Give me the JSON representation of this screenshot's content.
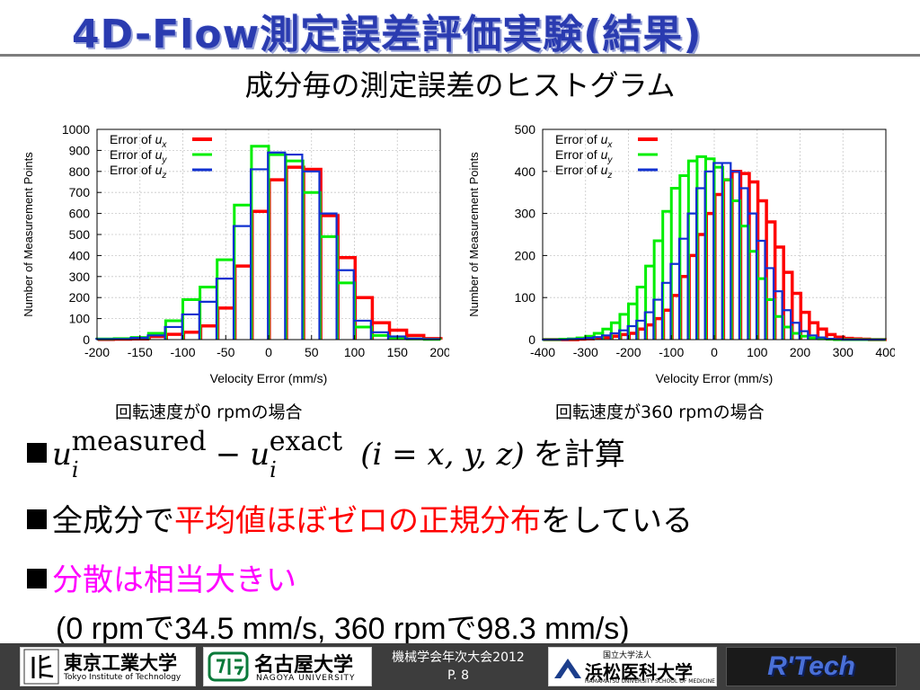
{
  "slide": {
    "title": "4D-Flow測定誤差評価実験(結果)",
    "subtitle": "成分毎の測定誤差のヒストグラム",
    "caption_left": "回転速度が0 rpmの場合",
    "caption_right": "回転速度が360 rpmの場合",
    "bullet1_formula": {
      "u": "u",
      "i": "i",
      "sup_measured": "measured",
      "minus": "−",
      "sup_exact": "exact",
      "condition": "(i = x, y, z)"
    },
    "bullet1_tail": "を計算",
    "bullet2_pre": "全成分で",
    "bullet2_red": "平均値ほぼゼロの正規分布",
    "bullet2_post": "をしている",
    "bullet3_magenta": "分散は相当大きい",
    "bullet3_detail": "(0 rpmで34.5 mm/s, 360 rpmで98.3 mm/s)"
  },
  "footer": {
    "logo1_text": "東京工業大学",
    "logo1_sub": "Tokyo Institute of Technology",
    "logo2_text": "名古屋大学",
    "logo2_sub": "NAGOYA UNIVERSITY",
    "center_line1": "機械学会年次大会2012",
    "center_line2": "P. 8",
    "logo3_small": "国立大学法人",
    "logo3_text": "浜松医科大学",
    "logo3_sub": "HAMAMATSU UNIVERSITY SCHOOL OF MEDICINE",
    "logo4_text": "R'Tech"
  },
  "chart_data": [
    {
      "type": "histogram-step",
      "xlabel": "Velocity Error (mm/s)",
      "ylabel": "Number of Measurement Points",
      "xlim": [
        -200,
        200
      ],
      "ylim": [
        0,
        1000
      ],
      "xticks": [
        -200,
        -150,
        -100,
        -50,
        0,
        50,
        100,
        150,
        200
      ],
      "yticks": [
        0,
        100,
        200,
        300,
        400,
        500,
        600,
        700,
        800,
        900,
        1000
      ],
      "grid": true,
      "legend_position": "top-left",
      "bin_edges": [
        -200,
        -180,
        -160,
        -140,
        -120,
        -100,
        -80,
        -60,
        -40,
        -20,
        0,
        20,
        40,
        60,
        80,
        100,
        120,
        140,
        160,
        180,
        200
      ],
      "series": [
        {
          "name": "Error of u_x",
          "legend_base": "Error of ",
          "legend_var": "u",
          "legend_sub": "x",
          "color": "#ff0000",
          "values": [
            1,
            2,
            3,
            15,
            25,
            35,
            65,
            150,
            350,
            610,
            760,
            820,
            810,
            590,
            390,
            200,
            80,
            45,
            20,
            5
          ]
        },
        {
          "name": "Error of u_y",
          "legend_base": "Error of ",
          "legend_var": "u",
          "legend_sub": "y",
          "color": "#00ee00",
          "values": [
            3,
            5,
            10,
            30,
            90,
            190,
            250,
            380,
            640,
            920,
            880,
            850,
            700,
            490,
            270,
            60,
            20,
            8,
            3,
            1
          ]
        },
        {
          "name": "Error of u_z",
          "legend_base": "Error of ",
          "legend_var": "u",
          "legend_sub": "z",
          "color": "#1030d0",
          "values": [
            2,
            3,
            8,
            20,
            60,
            120,
            180,
            290,
            540,
            810,
            890,
            880,
            800,
            600,
            330,
            90,
            35,
            15,
            5,
            2
          ]
        }
      ]
    },
    {
      "type": "histogram-step",
      "xlabel": "Velocity Error (mm/s)",
      "ylabel": "Number of Measurement Points",
      "xlim": [
        -400,
        400
      ],
      "ylim": [
        0,
        500
      ],
      "xticks": [
        -400,
        -300,
        -200,
        -100,
        0,
        100,
        200,
        300,
        400
      ],
      "yticks": [
        0,
        100,
        200,
        300,
        400,
        500
      ],
      "grid": true,
      "legend_position": "top-left",
      "bin_edges": [
        -400,
        -380,
        -360,
        -340,
        -320,
        -300,
        -280,
        -260,
        -240,
        -220,
        -200,
        -180,
        -160,
        -140,
        -120,
        -100,
        -80,
        -60,
        -40,
        -20,
        0,
        20,
        40,
        60,
        80,
        100,
        120,
        140,
        160,
        180,
        200,
        220,
        240,
        260,
        280,
        300,
        320,
        340,
        360,
        380,
        400
      ],
      "series": [
        {
          "name": "Error of u_x",
          "legend_base": "Error of ",
          "legend_var": "u",
          "legend_sub": "x",
          "color": "#ff0000",
          "values": [
            0,
            0,
            0,
            0,
            1,
            2,
            3,
            5,
            8,
            12,
            15,
            25,
            35,
            50,
            70,
            105,
            150,
            200,
            250,
            300,
            345,
            380,
            400,
            395,
            375,
            330,
            280,
            220,
            160,
            110,
            65,
            40,
            25,
            12,
            6,
            3,
            2,
            1,
            0,
            0
          ]
        },
        {
          "name": "Error of u_y",
          "legend_base": "Error of ",
          "legend_var": "u",
          "legend_sub": "y",
          "color": "#00ee00",
          "values": [
            0,
            0,
            1,
            2,
            4,
            8,
            15,
            25,
            40,
            60,
            85,
            125,
            175,
            235,
            305,
            360,
            390,
            425,
            435,
            430,
            410,
            380,
            330,
            270,
            210,
            145,
            95,
            55,
            30,
            15,
            8,
            4,
            2,
            1,
            0,
            0,
            0,
            0,
            0,
            0
          ]
        },
        {
          "name": "Error of u_z",
          "legend_base": "Error of ",
          "legend_var": "u",
          "legend_sub": "z",
          "color": "#1030d0",
          "values": [
            0,
            0,
            0,
            1,
            2,
            4,
            6,
            10,
            15,
            22,
            32,
            45,
            65,
            95,
            135,
            180,
            240,
            300,
            360,
            400,
            420,
            420,
            400,
            360,
            300,
            235,
            170,
            115,
            70,
            40,
            20,
            10,
            5,
            2,
            1,
            0,
            0,
            0,
            0,
            0
          ]
        }
      ]
    }
  ]
}
